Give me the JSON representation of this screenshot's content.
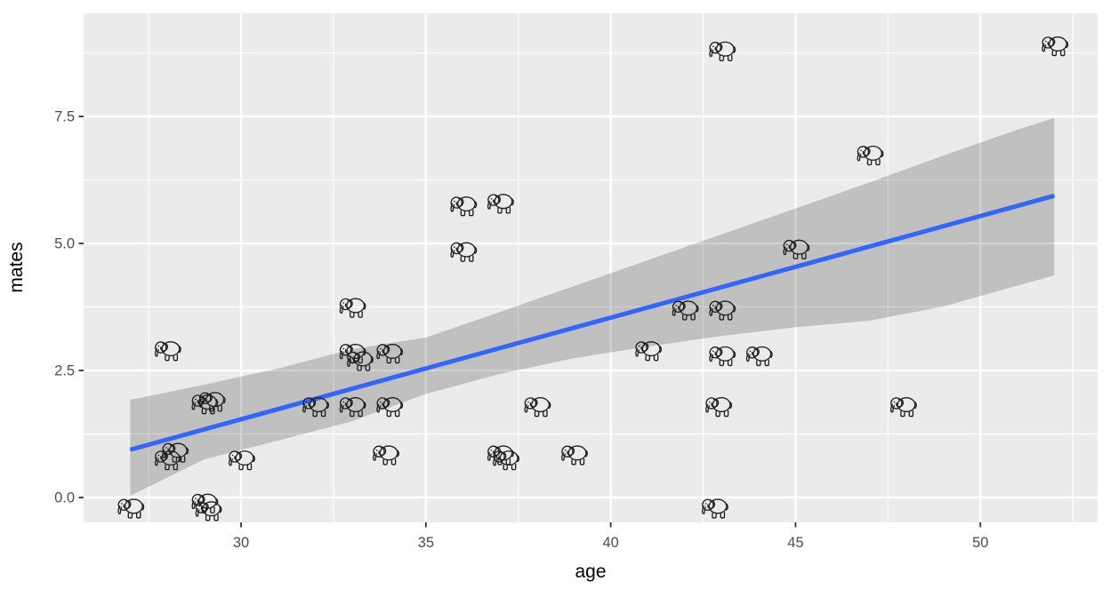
{
  "figure": {
    "x_axis_label": "age",
    "y_axis_label": "mates"
  },
  "chart_data": {
    "type": "scatter",
    "title": "",
    "xlabel": "age",
    "ylabel": "mates",
    "xlim": [
      25.74,
      53.17
    ],
    "ylim": [
      -0.49,
      9.53
    ],
    "x_ticks": [
      30,
      35,
      40,
      45,
      50
    ],
    "x_tick_labels": [
      "30",
      "35",
      "40",
      "45",
      "50"
    ],
    "y_ticks": [
      0,
      2.5,
      5,
      7.5
    ],
    "y_tick_labels": [
      "0.0",
      "2.5",
      "5.0",
      "7.5"
    ],
    "x_minor_gridlines": [
      27.5,
      32.5,
      37.5,
      42.5,
      47.5,
      52.5
    ],
    "y_minor_gridlines": [
      1.25,
      3.75,
      6.25,
      8.75
    ],
    "grid": "on",
    "legend": "none",
    "point_marker": "elephant-outline-emoji",
    "points": [
      [
        27,
        -0.2
      ],
      [
        28,
        0.75
      ],
      [
        28.2,
        0.9
      ],
      [
        28,
        2.9
      ],
      [
        29,
        1.85
      ],
      [
        29.2,
        1.9
      ],
      [
        29,
        -0.1
      ],
      [
        29.1,
        -0.25
      ],
      [
        30,
        0.75
      ],
      [
        32,
        1.8
      ],
      [
        33,
        1.8
      ],
      [
        33,
        2.85
      ],
      [
        33.2,
        2.7
      ],
      [
        33,
        3.75
      ],
      [
        34,
        2.85
      ],
      [
        34,
        1.8
      ],
      [
        33.9,
        0.85
      ],
      [
        36,
        5.75
      ],
      [
        36,
        4.85
      ],
      [
        37,
        5.8
      ],
      [
        37,
        0.85
      ],
      [
        37.15,
        0.75
      ],
      [
        38,
        1.8
      ],
      [
        39,
        0.85
      ],
      [
        41,
        2.9
      ],
      [
        42,
        3.7
      ],
      [
        42.9,
        1.8
      ],
      [
        43,
        3.7
      ],
      [
        43,
        2.8
      ],
      [
        43,
        8.8
      ],
      [
        42.8,
        -0.2
      ],
      [
        44,
        2.8
      ],
      [
        45,
        4.9
      ],
      [
        47,
        6.75
      ],
      [
        47.9,
        1.8
      ],
      [
        52,
        8.9
      ]
    ],
    "trend_line": {
      "type": "linear",
      "x_start": 27,
      "y_start": 0.94,
      "x_end": 52,
      "y_end": 5.94,
      "color": "#3366FF"
    },
    "confidence_band": {
      "x": [
        27,
        29,
        31,
        33,
        35,
        37,
        39,
        41,
        43,
        45,
        47,
        49,
        51,
        52
      ],
      "upper": [
        1.92,
        2.22,
        2.54,
        2.92,
        3.15,
        3.65,
        4.16,
        4.67,
        5.18,
        5.69,
        6.2,
        6.73,
        7.24,
        7.47
      ],
      "lower": [
        0.03,
        0.75,
        1.12,
        1.5,
        2.04,
        2.43,
        2.74,
        2.97,
        3.18,
        3.35,
        3.48,
        3.76,
        4.17,
        4.37
      ]
    },
    "colors": {
      "panel_background": "#EBEBEB",
      "gridline": "#FFFFFF",
      "trend_line": "#3366FF",
      "confidence_band": "rgba(0,0,0,0.18)",
      "tick_label": "#4D4D4D",
      "axis_title": "#000000",
      "tick_mark": "#333333",
      "marker_stroke": "#1F1F1F"
    }
  }
}
